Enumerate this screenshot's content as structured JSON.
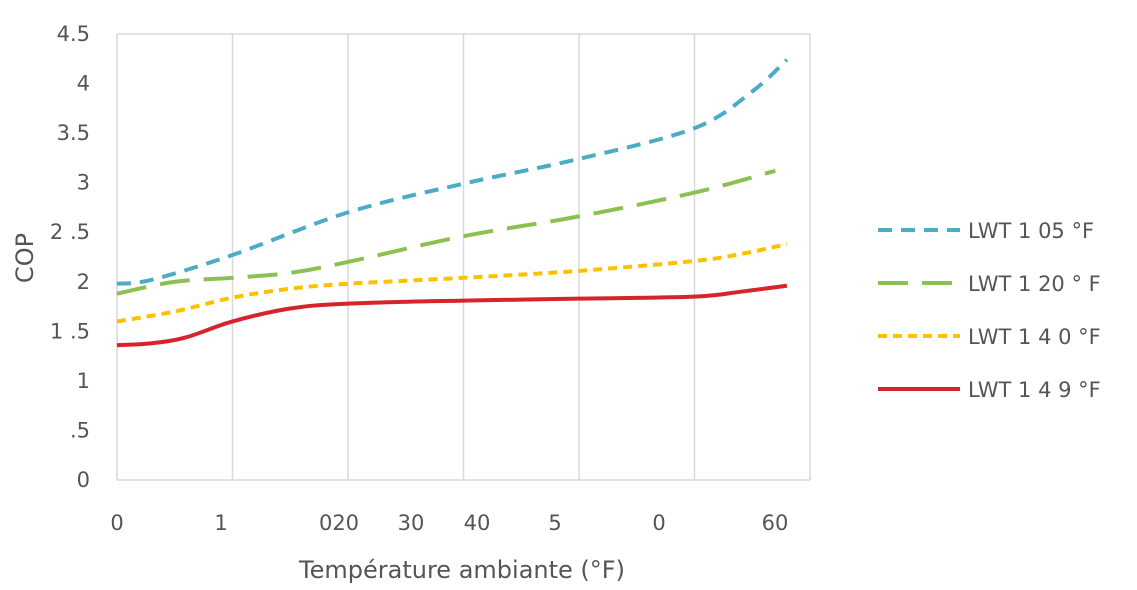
{
  "chart_data": {
    "type": "line",
    "xlabel": "Température ambiante (°F)",
    "ylabel": "COP",
    "xlim": [
      0,
      60
    ],
    "ylim": [
      0,
      4.5
    ],
    "y_ticks": [
      "0",
      ".5",
      "1",
      "1 .5",
      "2",
      "2 .5",
      "3",
      "3.5",
      "4",
      "4.5"
    ],
    "x_ticks": [
      "0",
      "1",
      "020",
      "30",
      "40",
      "5",
      "0",
      "60"
    ],
    "grid": "vertical gridlines only",
    "legend_position": "right",
    "series": [
      {
        "name": "LWT 1 05 °F",
        "color": "#4bacc6",
        "dash": "short-dash",
        "x": [
          0,
          3,
          10,
          20,
          30,
          40,
          50,
          55,
          58
        ],
        "y": [
          1.98,
          2.02,
          2.27,
          2.7,
          2.99,
          3.24,
          3.55,
          3.92,
          4.24
        ]
      },
      {
        "name": "LWT 1 20 ° F",
        "color": "#8cc152",
        "dash": "long-dash",
        "x": [
          0,
          5,
          10,
          15,
          20,
          30,
          40,
          50,
          57
        ],
        "y": [
          1.88,
          2.0,
          2.04,
          2.09,
          2.2,
          2.46,
          2.66,
          2.9,
          3.12
        ]
      },
      {
        "name": "LWT 1 4 0 °F",
        "color": "#ffc000",
        "dash": "dot",
        "x": [
          0,
          5,
          10,
          15,
          20,
          30,
          40,
          50,
          54,
          58
        ],
        "y": [
          1.6,
          1.7,
          1.84,
          1.93,
          1.98,
          2.04,
          2.11,
          2.21,
          2.28,
          2.38
        ]
      },
      {
        "name": "LWT 1 4 9 °F",
        "color": "#d6242a",
        "dash": "solid",
        "x": [
          0,
          3,
          6,
          10,
          15,
          20,
          30,
          40,
          50,
          54,
          58
        ],
        "y": [
          1.36,
          1.38,
          1.44,
          1.6,
          1.73,
          1.78,
          1.81,
          1.83,
          1.85,
          1.9,
          1.96
        ]
      }
    ]
  }
}
